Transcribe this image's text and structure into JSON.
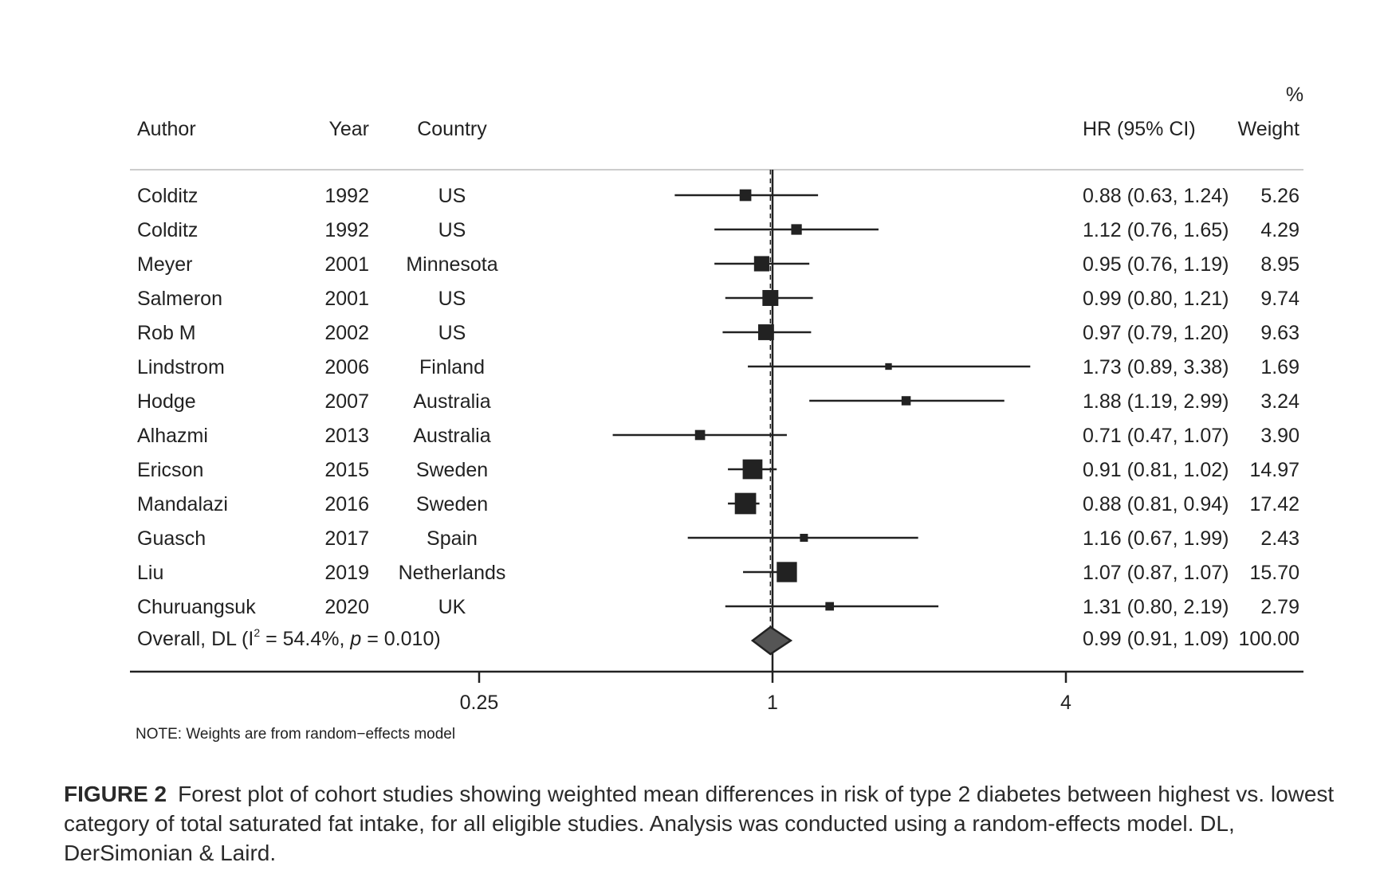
{
  "chart_data": {
    "type": "forest",
    "scale": "log",
    "xlim": [
      0.16,
      6.0
    ],
    "reference_line": 1,
    "x_ticks": [
      "0.25",
      "1",
      "4"
    ],
    "headers": {
      "author": "Author",
      "year": "Year",
      "country": "Country",
      "hr": "HR (95% CI)",
      "weight_top": "%",
      "weight": "Weight"
    },
    "studies": [
      {
        "author": "Colditz",
        "year": "1992",
        "country": "US",
        "hr": 0.88,
        "lo": 0.63,
        "hi": 1.24,
        "hr_text": "0.88 (0.63, 1.24)",
        "weight": 5.26,
        "weight_text": "5.26"
      },
      {
        "author": "Colditz",
        "year": "1992",
        "country": "US",
        "hr": 1.12,
        "lo": 0.76,
        "hi": 1.65,
        "hr_text": "1.12 (0.76, 1.65)",
        "weight": 4.29,
        "weight_text": "4.29"
      },
      {
        "author": "Meyer",
        "year": "2001",
        "country": "Minnesota",
        "hr": 0.95,
        "lo": 0.76,
        "hi": 1.19,
        "hr_text": "0.95 (0.76, 1.19)",
        "weight": 8.95,
        "weight_text": "8.95"
      },
      {
        "author": "Salmeron",
        "year": "2001",
        "country": "US",
        "hr": 0.99,
        "lo": 0.8,
        "hi": 1.21,
        "hr_text": "0.99 (0.80, 1.21)",
        "weight": 9.74,
        "weight_text": "9.74"
      },
      {
        "author": "Rob M",
        "year": "2002",
        "country": "US",
        "hr": 0.97,
        "lo": 0.79,
        "hi": 1.2,
        "hr_text": "0.97 (0.79, 1.20)",
        "weight": 9.63,
        "weight_text": "9.63"
      },
      {
        "author": "Lindstrom",
        "year": "2006",
        "country": "Finland",
        "hr": 1.73,
        "lo": 0.89,
        "hi": 3.38,
        "hr_text": "1.73 (0.89, 3.38)",
        "weight": 1.69,
        "weight_text": "1.69"
      },
      {
        "author": "Hodge",
        "year": "2007",
        "country": "Australia",
        "hr": 1.88,
        "lo": 1.19,
        "hi": 2.99,
        "hr_text": "1.88 (1.19, 2.99)",
        "weight": 3.24,
        "weight_text": "3.24"
      },
      {
        "author": "Alhazmi",
        "year": "2013",
        "country": "Australia",
        "hr": 0.71,
        "lo": 0.47,
        "hi": 1.07,
        "hr_text": "0.71 (0.47, 1.07)",
        "weight": 3.9,
        "weight_text": "3.90"
      },
      {
        "author": "Ericson",
        "year": "2015",
        "country": "Sweden",
        "hr": 0.91,
        "lo": 0.81,
        "hi": 1.02,
        "hr_text": "0.91 (0.81, 1.02)",
        "weight": 14.97,
        "weight_text": "14.97"
      },
      {
        "author": "Mandalazi",
        "year": "2016",
        "country": "Sweden",
        "hr": 0.88,
        "lo": 0.81,
        "hi": 0.94,
        "hr_text": "0.88 (0.81, 0.94)",
        "weight": 17.42,
        "weight_text": "17.42"
      },
      {
        "author": "Guasch",
        "year": "2017",
        "country": "Spain",
        "hr": 1.16,
        "lo": 0.67,
        "hi": 1.99,
        "hr_text": "1.16 (0.67, 1.99)",
        "weight": 2.43,
        "weight_text": "2.43"
      },
      {
        "author": "Liu",
        "year": "2019",
        "country": "Netherlands",
        "hr": 1.07,
        "lo": 0.87,
        "hi": 1.07,
        "hr_text": "1.07 (0.87, 1.07)",
        "weight": 15.7,
        "weight_text": "15.70"
      },
      {
        "author": "Churuangsuk",
        "year": "2020",
        "country": "UK",
        "hr": 1.31,
        "lo": 0.8,
        "hi": 2.19,
        "hr_text": "1.31 (0.80, 2.19)",
        "weight": 2.79,
        "weight_text": "2.79"
      }
    ],
    "overall": {
      "label_prefix": "Overall, DL (I",
      "label_sup": "2",
      "label_mid": " = 54.4%, ",
      "label_p": "p",
      "label_end": " = 0.010)",
      "hr": 0.99,
      "lo": 0.91,
      "hi": 1.09,
      "hr_text": "0.99 (0.91, 1.09)",
      "weight_text": "100.00"
    },
    "note": "NOTE: Weights are from random−effects model",
    "colors": {
      "ink": "#222222",
      "diamond": "#555555"
    }
  },
  "caption": {
    "label": "FIGURE 2",
    "text": "Forest plot of cohort studies showing weighted mean differences in risk of type 2 diabetes between highest vs. lowest category of total saturated fat intake, for all eligible studies. Analysis was conducted using a random-effects model. DL, DerSimonian & Laird."
  }
}
